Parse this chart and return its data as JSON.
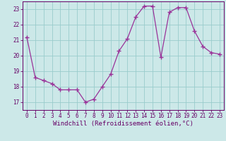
{
  "x": [
    0,
    1,
    2,
    3,
    4,
    5,
    6,
    7,
    8,
    9,
    10,
    11,
    12,
    13,
    14,
    15,
    16,
    17,
    18,
    19,
    20,
    21,
    22,
    23
  ],
  "y": [
    21.2,
    18.6,
    18.4,
    18.2,
    17.8,
    17.8,
    17.8,
    17.0,
    17.2,
    18.0,
    18.8,
    20.3,
    21.1,
    22.5,
    23.2,
    23.2,
    19.9,
    22.8,
    23.1,
    23.1,
    21.6,
    20.6,
    20.2,
    20.1
  ],
  "line_color": "#993399",
  "marker": "+",
  "background_color": "#cce8e8",
  "grid_color": "#99cccc",
  "xlabel": "Windchill (Refroidissement éolien,°C)",
  "xlim": [
    -0.5,
    23.5
  ],
  "ylim": [
    16.5,
    23.5
  ],
  "yticks": [
    17,
    18,
    19,
    20,
    21,
    22,
    23
  ],
  "xticks": [
    0,
    1,
    2,
    3,
    4,
    5,
    6,
    7,
    8,
    9,
    10,
    11,
    12,
    13,
    14,
    15,
    16,
    17,
    18,
    19,
    20,
    21,
    22,
    23
  ],
  "tick_color": "#660066",
  "tick_fontsize": 5.5,
  "xlabel_fontsize": 6.5,
  "line_width": 0.9,
  "marker_size": 4
}
